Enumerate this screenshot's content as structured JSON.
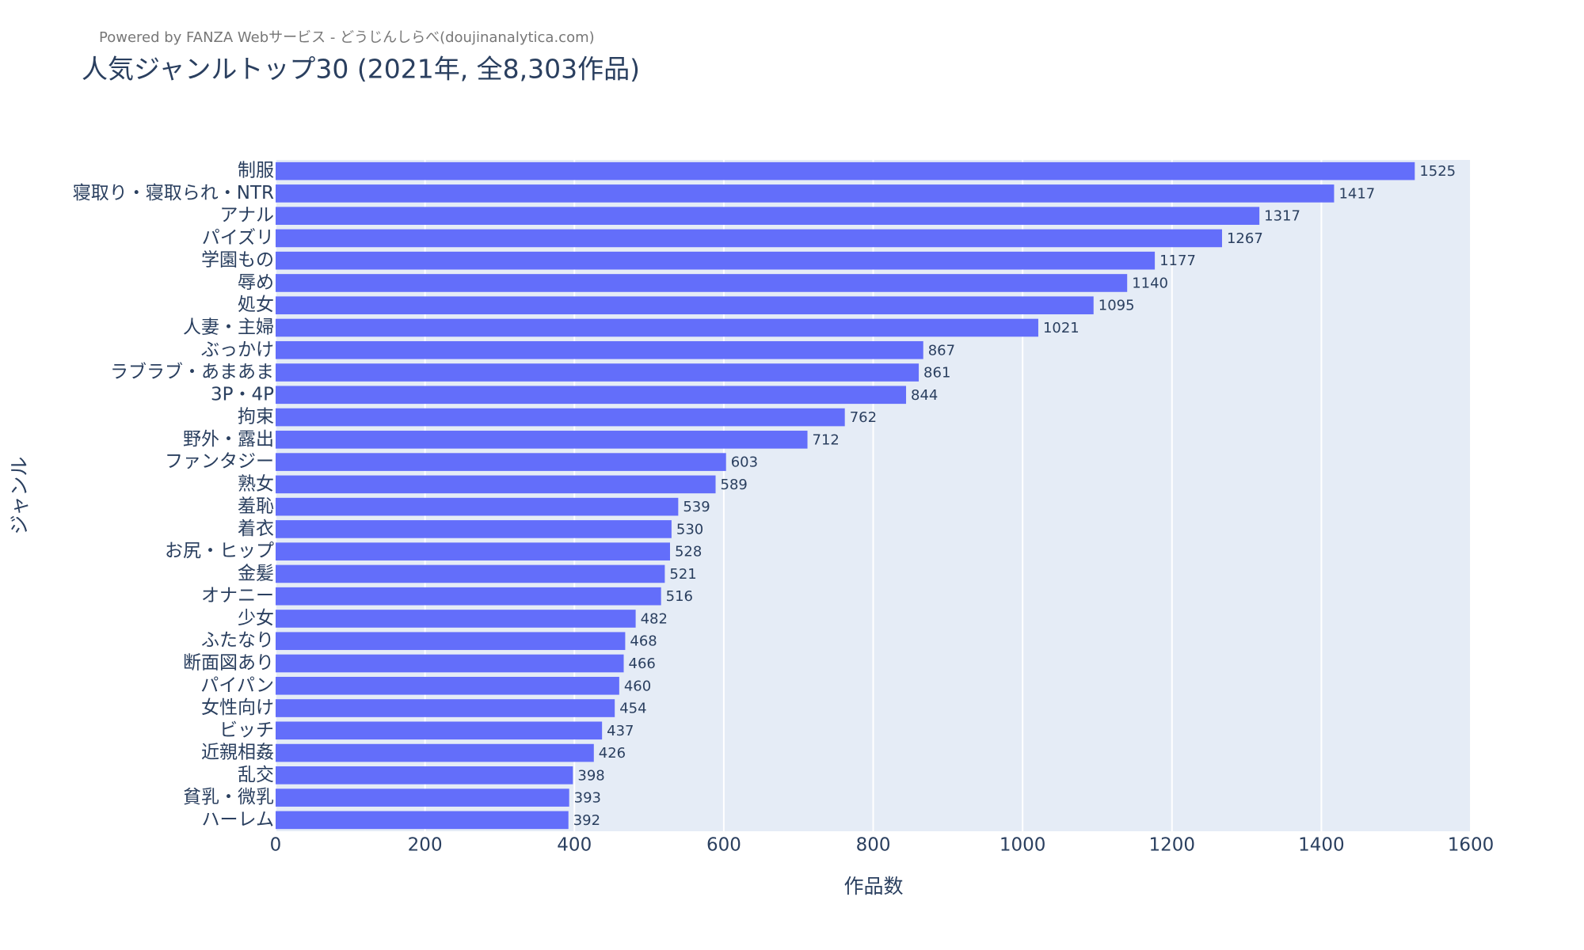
{
  "chart_data": {
    "type": "barh",
    "subtitle": "Powered by FANZA Webサービス - どうじんしらべ(doujinanalytica.com)",
    "title": "人気ジャンルトップ30 (2021年, 全8,303作品)",
    "x_label": "作品数",
    "y_label": "ジャンル",
    "categories": [
      "制服",
      "寝取り・寝取られ・NTR",
      "アナル",
      "パイズリ",
      "学園もの",
      "辱め",
      "処女",
      "人妻・主婦",
      "ぶっかけ",
      "ラブラブ・あまあま",
      "3P・4P",
      "拘束",
      "野外・露出",
      "ファンタジー",
      "熟女",
      "羞恥",
      "着衣",
      "お尻・ヒップ",
      "金髪",
      "オナニー",
      "少女",
      "ふたなり",
      "断面図あり",
      "パイパン",
      "女性向け",
      "ビッチ",
      "近親相姦",
      "乱交",
      "貧乳・微乳",
      "ハーレム"
    ],
    "values": [
      1525,
      1417,
      1317,
      1267,
      1177,
      1140,
      1095,
      1021,
      867,
      861,
      844,
      762,
      712,
      603,
      589,
      539,
      530,
      528,
      521,
      516,
      482,
      468,
      466,
      460,
      454,
      437,
      426,
      398,
      393,
      392
    ],
    "color": "#636efa",
    "xlim": [
      0,
      1601
    ],
    "xticks": [
      0,
      200,
      400,
      600,
      800,
      1000,
      1200,
      1400,
      1600
    ],
    "grid": true
  }
}
